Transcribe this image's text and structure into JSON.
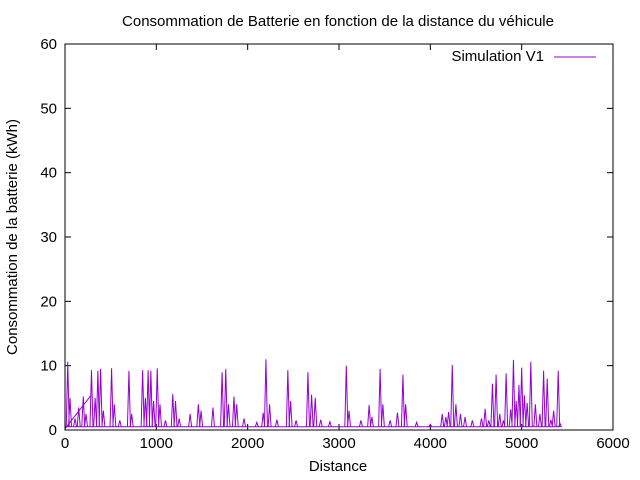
{
  "chart_data": {
    "type": "line",
    "title": "Consommation de Batterie en fonction de la distance du véhicule",
    "xlabel": "Distance",
    "ylabel": "Consommation de la batterie (kWh)",
    "xlim": [
      0,
      6000
    ],
    "ylim": [
      0,
      60
    ],
    "xticks": [
      0,
      1000,
      2000,
      3000,
      4000,
      5000,
      6000
    ],
    "yticks": [
      0,
      10,
      20,
      30,
      40,
      50,
      60
    ],
    "grid": false,
    "legend_position": "top-right",
    "series": [
      {
        "name": "Simulation V1",
        "color": "#9400d3",
        "baseline": 0.5,
        "spikes": [
          [
            30,
            10.6
          ],
          [
            55,
            5.0
          ],
          [
            110,
            1.8
          ],
          [
            150,
            3.5
          ],
          [
            200,
            5.2
          ],
          [
            230,
            2.5
          ],
          [
            290,
            9.3
          ],
          [
            330,
            5.0
          ],
          [
            360,
            9.2
          ],
          [
            390,
            9.5
          ],
          [
            420,
            3.0
          ],
          [
            510,
            9.6
          ],
          [
            540,
            4.0
          ],
          [
            600,
            1.5
          ],
          [
            700,
            9.2
          ],
          [
            730,
            2.5
          ],
          [
            850,
            9.3
          ],
          [
            880,
            5.0
          ],
          [
            910,
            9.3
          ],
          [
            940,
            9.2
          ],
          [
            970,
            4.5
          ],
          [
            1010,
            9.6
          ],
          [
            1040,
            4.0
          ],
          [
            1100,
            1.5
          ],
          [
            1180,
            5.6
          ],
          [
            1210,
            4.5
          ],
          [
            1250,
            1.8
          ],
          [
            1370,
            2.5
          ],
          [
            1460,
            4.0
          ],
          [
            1490,
            3.0
          ],
          [
            1620,
            3.5
          ],
          [
            1720,
            9.0
          ],
          [
            1760,
            9.5
          ],
          [
            1790,
            4.0
          ],
          [
            1850,
            5.2
          ],
          [
            1880,
            4.0
          ],
          [
            1960,
            1.8
          ],
          [
            2100,
            1.2
          ],
          [
            2170,
            2.7
          ],
          [
            2200,
            11.0
          ],
          [
            2240,
            4.0
          ],
          [
            2320,
            1.6
          ],
          [
            2440,
            9.3
          ],
          [
            2470,
            4.5
          ],
          [
            2530,
            1.5
          ],
          [
            2660,
            9.0
          ],
          [
            2700,
            5.5
          ],
          [
            2740,
            5.0
          ],
          [
            2800,
            1.6
          ],
          [
            2900,
            1.3
          ],
          [
            3080,
            10.0
          ],
          [
            3110,
            3.0
          ],
          [
            3240,
            1.5
          ],
          [
            3330,
            3.9
          ],
          [
            3360,
            2.0
          ],
          [
            3450,
            9.5
          ],
          [
            3480,
            4.0
          ],
          [
            3560,
            1.5
          ],
          [
            3640,
            2.7
          ],
          [
            3700,
            8.6
          ],
          [
            3730,
            4.0
          ],
          [
            3850,
            1.2
          ],
          [
            4000,
            0.9
          ],
          [
            4130,
            2.5
          ],
          [
            4170,
            2.0
          ],
          [
            4200,
            2.8
          ],
          [
            4240,
            10.1
          ],
          [
            4280,
            4.0
          ],
          [
            4330,
            2.5
          ],
          [
            4380,
            2.0
          ],
          [
            4460,
            1.5
          ],
          [
            4560,
            1.8
          ],
          [
            4600,
            3.3
          ],
          [
            4640,
            1.5
          ],
          [
            4680,
            7.2
          ],
          [
            4720,
            8.6
          ],
          [
            4760,
            2.5
          ],
          [
            4800,
            1.5
          ],
          [
            4830,
            8.8
          ],
          [
            4880,
            3.2
          ],
          [
            4910,
            10.9
          ],
          [
            4940,
            4.5
          ],
          [
            4970,
            7.0
          ],
          [
            5000,
            9.7
          ],
          [
            5030,
            5.4
          ],
          [
            5060,
            4.2
          ],
          [
            5100,
            10.6
          ],
          [
            5150,
            4.0
          ],
          [
            5200,
            2.5
          ],
          [
            5240,
            9.2
          ],
          [
            5280,
            8.0
          ],
          [
            5320,
            1.6
          ],
          [
            5350,
            3.0
          ],
          [
            5400,
            9.2
          ],
          [
            5420,
            1.0
          ]
        ],
        "ramp": [
          [
            0,
            0.2
          ],
          [
            280,
            5.3
          ]
        ],
        "x_end": 5430
      }
    ]
  }
}
